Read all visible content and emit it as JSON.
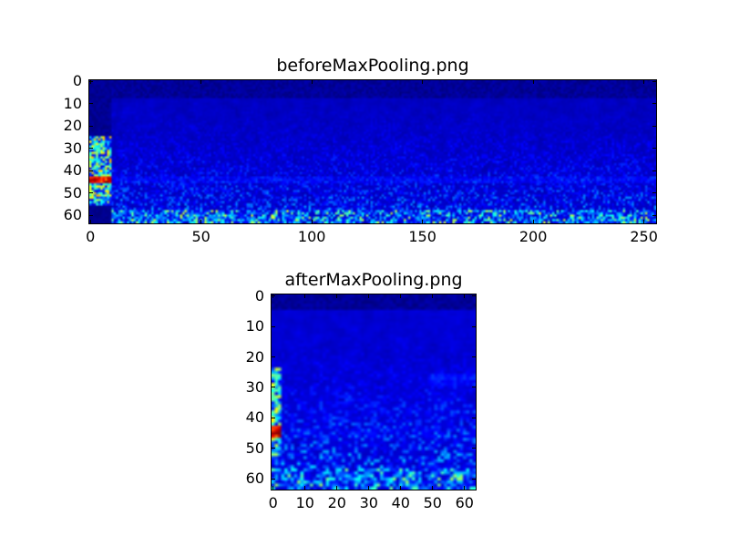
{
  "figure": {
    "background_color": "#ffffff",
    "axis_color": "#000000",
    "colormap_name": "jet"
  },
  "chart_data": [
    {
      "type": "heatmap",
      "title": "beforeMaxPooling.png",
      "colormap": "jet",
      "grid_cols": 256,
      "grid_rows": 64,
      "x_range": [
        -0.5,
        255.5
      ],
      "y_range": [
        -0.5,
        63.5
      ],
      "y_inverted": true,
      "x_ticks": [
        0,
        50,
        100,
        150,
        200,
        250
      ],
      "y_ticks": [
        0,
        10,
        20,
        30,
        40,
        50,
        60
      ],
      "legend": "none",
      "grid": false,
      "background": {
        "base": 0.03,
        "amp": 0.07,
        "grad": 0.3
      },
      "seed": 1337,
      "features": [
        {
          "name": "top-dark-band",
          "x": [
            0,
            255
          ],
          "y": [
            0,
            7
          ],
          "base": 0.0,
          "amp": 0.05,
          "blend": "set"
        },
        {
          "name": "left-dark-upper",
          "x": [
            0,
            9
          ],
          "y": [
            0,
            24
          ],
          "base": 0.0,
          "amp": 0.04,
          "blend": "set"
        },
        {
          "name": "left-bright-column",
          "x": [
            0,
            9
          ],
          "y": [
            25,
            55
          ],
          "base": 0.08,
          "amp": 0.62,
          "blend": "set",
          "pow": 1.4
        },
        {
          "name": "red-streak",
          "x": [
            0,
            9
          ],
          "y": [
            43,
            45
          ],
          "base": 0.72,
          "amp": 0.28,
          "blend": "max"
        },
        {
          "name": "left-dark-lower",
          "x": [
            0,
            9
          ],
          "y": [
            56,
            63
          ],
          "base": 0.0,
          "amp": 0.03,
          "blend": "set"
        },
        {
          "name": "faint-row-band",
          "x": [
            10,
            255
          ],
          "y": [
            43,
            45
          ],
          "base": 0.07,
          "amp": 0.09,
          "blend": "max"
        },
        {
          "name": "bottom-speckle-rows",
          "x": [
            10,
            255
          ],
          "y": [
            58,
            63
          ],
          "base": 0.04,
          "amp": 0.55,
          "blend": "max",
          "pow": 3
        }
      ]
    },
    {
      "type": "heatmap",
      "title": "afterMaxPooling.png",
      "colormap": "jet",
      "grid_cols": 64,
      "grid_rows": 64,
      "x_range": [
        -0.5,
        63.5
      ],
      "y_range": [
        -0.5,
        63.5
      ],
      "y_inverted": true,
      "x_ticks": [
        0,
        10,
        20,
        30,
        40,
        50,
        60
      ],
      "y_ticks": [
        0,
        10,
        20,
        30,
        40,
        50,
        60
      ],
      "legend": "none",
      "grid": false,
      "background": {
        "base": 0.04,
        "amp": 0.08,
        "grad": 0.35
      },
      "seed": 2024,
      "features": [
        {
          "name": "top-dark-band",
          "x": [
            0,
            63
          ],
          "y": [
            0,
            4
          ],
          "base": 0.0,
          "amp": 0.05,
          "blend": "set"
        },
        {
          "name": "left-bright-column",
          "x": [
            0,
            2
          ],
          "y": [
            24,
            52
          ],
          "base": 0.1,
          "amp": 0.55,
          "blend": "set",
          "pow": 1.3
        },
        {
          "name": "red-blob",
          "x": [
            0,
            2
          ],
          "y": [
            43,
            46
          ],
          "base": 0.75,
          "amp": 0.25,
          "blend": "max"
        },
        {
          "name": "faint-row-band",
          "x": [
            3,
            63
          ],
          "y": [
            44,
            46
          ],
          "base": 0.06,
          "amp": 0.08,
          "blend": "max"
        },
        {
          "name": "right-smudge",
          "x": [
            50,
            63
          ],
          "y": [
            26,
            29
          ],
          "base": 0.1,
          "amp": 0.08,
          "blend": "max"
        },
        {
          "name": "bottom-speckle-rows",
          "x": [
            0,
            63
          ],
          "y": [
            57,
            63
          ],
          "base": 0.04,
          "amp": 0.52,
          "blend": "max",
          "pow": 3
        }
      ]
    }
  ]
}
